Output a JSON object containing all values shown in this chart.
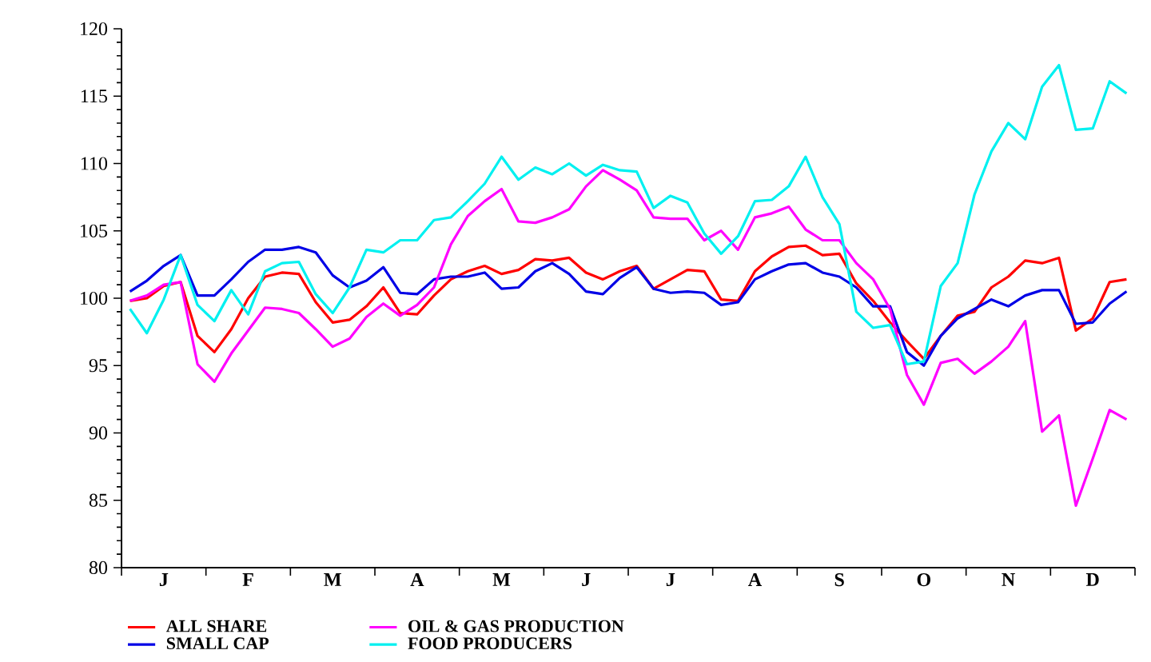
{
  "chart_data": {
    "type": "line",
    "ylim": [
      80,
      120
    ],
    "yticks": [
      80,
      85,
      90,
      95,
      100,
      105,
      110,
      115,
      120
    ],
    "categories": [
      null,
      null,
      "J",
      null,
      null,
      null,
      null,
      "F",
      null,
      null,
      null,
      null,
      "M",
      null,
      null,
      null,
      null,
      "A",
      null,
      null,
      null,
      null,
      "M",
      null,
      null,
      null,
      null,
      "J",
      null,
      null,
      null,
      null,
      "J",
      null,
      null,
      null,
      null,
      "A",
      null,
      null,
      null,
      null,
      "S",
      null,
      null,
      null,
      null,
      "O",
      null,
      null,
      null,
      null,
      "N",
      null,
      null,
      null,
      null,
      "D",
      null,
      null
    ],
    "legend": "bottom",
    "grid": false,
    "marker": "none",
    "line_style": "solid",
    "series": [
      {
        "name": "ALL SHARE",
        "color": "#ff0000",
        "values": [
          99.8,
          100,
          100.9,
          101.2,
          97.2,
          96,
          97.7,
          100,
          101.6,
          101.9,
          101.8,
          99.7,
          98.2,
          98.4,
          99.4,
          100.8,
          98.9,
          98.8,
          100.2,
          101.4,
          102,
          102.4,
          101.8,
          102.1,
          102.9,
          102.8,
          103,
          101.9,
          101.4,
          102,
          102.4,
          100.7,
          101.4,
          102.1,
          102,
          99.9,
          99.8,
          102,
          103.1,
          103.8,
          103.9,
          103.2,
          103.3,
          101.1,
          99.8,
          98.2,
          96.8,
          95.5,
          97.2,
          98.7,
          99,
          100.8,
          101.6,
          102.8,
          102.6,
          103,
          97.6,
          98.5,
          101.2,
          101.4
        ]
      },
      {
        "name": "SMALL CAP",
        "color": "#0000e6",
        "values": [
          100.5,
          101.3,
          102.4,
          103.2,
          100.2,
          100.2,
          101.4,
          102.7,
          103.6,
          103.6,
          103.8,
          103.4,
          101.7,
          100.8,
          101.3,
          102.3,
          100.4,
          100.3,
          101.4,
          101.6,
          101.6,
          101.9,
          100.7,
          100.8,
          102,
          102.6,
          101.8,
          100.5,
          100.3,
          101.5,
          102.3,
          100.7,
          100.4,
          100.5,
          100.4,
          99.5,
          99.7,
          101.4,
          102,
          102.5,
          102.6,
          101.9,
          101.6,
          100.8,
          99.4,
          99.4,
          96,
          95,
          97.2,
          98.5,
          99.2,
          99.9,
          99.4,
          100.2,
          100.6,
          100.6,
          98.1,
          98.2,
          99.6,
          100.5
        ]
      },
      {
        "name": "OIL & GAS PRODUCTION",
        "color": "#ff00ff",
        "values": [
          99.8,
          100.2,
          101,
          101.2,
          95.1,
          93.8,
          95.9,
          97.6,
          99.3,
          99.2,
          98.9,
          97.7,
          96.4,
          97,
          98.6,
          99.6,
          98.7,
          99.5,
          100.8,
          104,
          106.1,
          107.2,
          108.1,
          105.7,
          105.6,
          106,
          106.6,
          108.3,
          109.5,
          108.8,
          108,
          106,
          105.9,
          105.9,
          104.3,
          105,
          103.6,
          106,
          106.3,
          106.8,
          105.1,
          104.3,
          104.3,
          102.6,
          101.4,
          99.2,
          94.3,
          92.1,
          95.2,
          95.5,
          94.4,
          95.3,
          96.4,
          98.3,
          90.1,
          91.3,
          84.6,
          88.1,
          91.7,
          91
        ]
      },
      {
        "name": "FOOD PRODUCERS",
        "color": "#00f0f0",
        "values": [
          99.2,
          97.4,
          99.9,
          103.2,
          99.5,
          98.3,
          100.6,
          98.8,
          102,
          102.6,
          102.7,
          100.3,
          98.9,
          100.8,
          103.6,
          103.4,
          104.3,
          104.3,
          105.8,
          106,
          107.2,
          108.5,
          110.5,
          108.8,
          109.7,
          109.2,
          110,
          109.1,
          109.9,
          109.5,
          109.4,
          106.7,
          107.6,
          107.1,
          104.8,
          103.3,
          104.6,
          107.2,
          107.3,
          108.3,
          110.5,
          107.5,
          105.5,
          99,
          97.8,
          98,
          95.1,
          95.3,
          100.9,
          102.6,
          107.7,
          110.9,
          113,
          111.8,
          115.7,
          117.3,
          112.5,
          112.6,
          116.1,
          115.2
        ]
      }
    ]
  }
}
